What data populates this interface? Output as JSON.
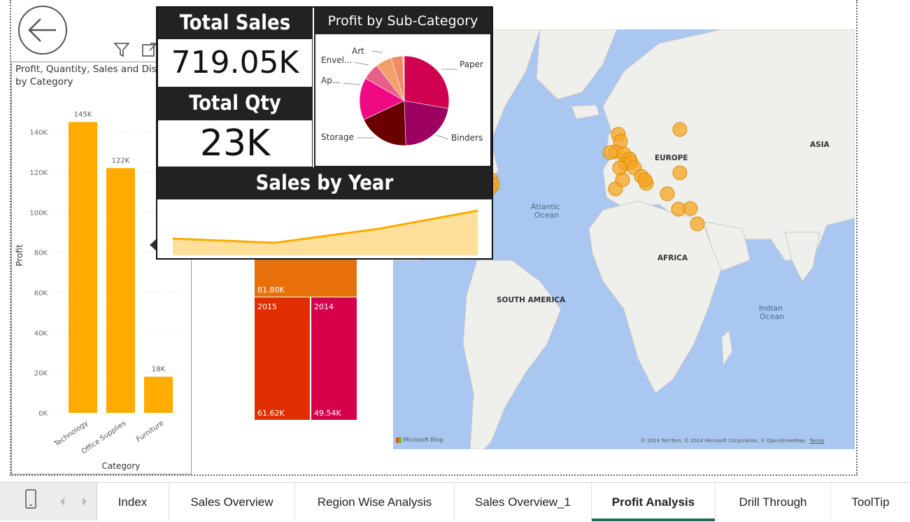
{
  "back_button": {
    "icon": "back-arrow-icon"
  },
  "header_icons": {
    "filter": "filter-icon",
    "focus": "focus-mode-icon"
  },
  "bar_chart": {
    "title_line1": "Profit, Quantity, Sales and Dis",
    "title_line2": "by Category",
    "xlabel": "Category",
    "ylabel": "Profit",
    "tick_labels": [
      "0K",
      "20K",
      "40K",
      "60K",
      "80K",
      "100K",
      "120K",
      "140K"
    ],
    "bar_color": "#ffab00"
  },
  "chart_data": {
    "type": "bar",
    "categories": [
      "Technology",
      "Office Supplies",
      "Furniture"
    ],
    "values": [
      145,
      122,
      18
    ],
    "data_labels": [
      "145K",
      "122K",
      "18K"
    ],
    "xlabel": "Category",
    "ylabel": "Profit",
    "ylim": [
      0,
      150
    ]
  },
  "tooltip": {
    "total_sales_label": "Total Sales",
    "total_sales_value": "719.05K",
    "total_qty_label": "Total Qty",
    "total_qty_value": "23K",
    "pie_title": "Profit by Sub-Category",
    "pie_labels": [
      "Art",
      "Envel...",
      "Ap...",
      "Paper",
      "Binders",
      "Storage"
    ],
    "sales_by_year_title": "Sales by Year",
    "line_color": "#ffab00",
    "area_color": "#ffdf99"
  },
  "treemap": {
    "cells": [
      {
        "label": "",
        "value": "81.80K",
        "color": "#e8700a"
      },
      {
        "label": "2015",
        "value": "61.62K",
        "color": "#e12e00"
      },
      {
        "label": "2014",
        "value": "49.54K",
        "color": "#d6004a"
      }
    ]
  },
  "map": {
    "labels": [
      "EUROPE",
      "ASIA",
      "AFRICA",
      "SOUTH AMERICA",
      "Atlantic",
      "Ocean",
      "Indian",
      "Ocean"
    ],
    "bing": "Microsoft Bing",
    "copyright": "© 2024 TomTom, © 2024 Microsoft Corporation, © OpenStreetMap",
    "terms": "Terms",
    "bubble_color": "#f5a623"
  },
  "tabs": {
    "items": [
      "Index",
      "Sales Overview",
      "Region Wise Analysis",
      "Sales Overview_1",
      "Profit Analysis",
      "Drill Through",
      "ToolTip"
    ],
    "active": "Profit Analysis",
    "mobile_icon": "mobile-layout-icon",
    "prev_icon": "chevron-left-icon",
    "next_icon": "chevron-right-icon"
  }
}
